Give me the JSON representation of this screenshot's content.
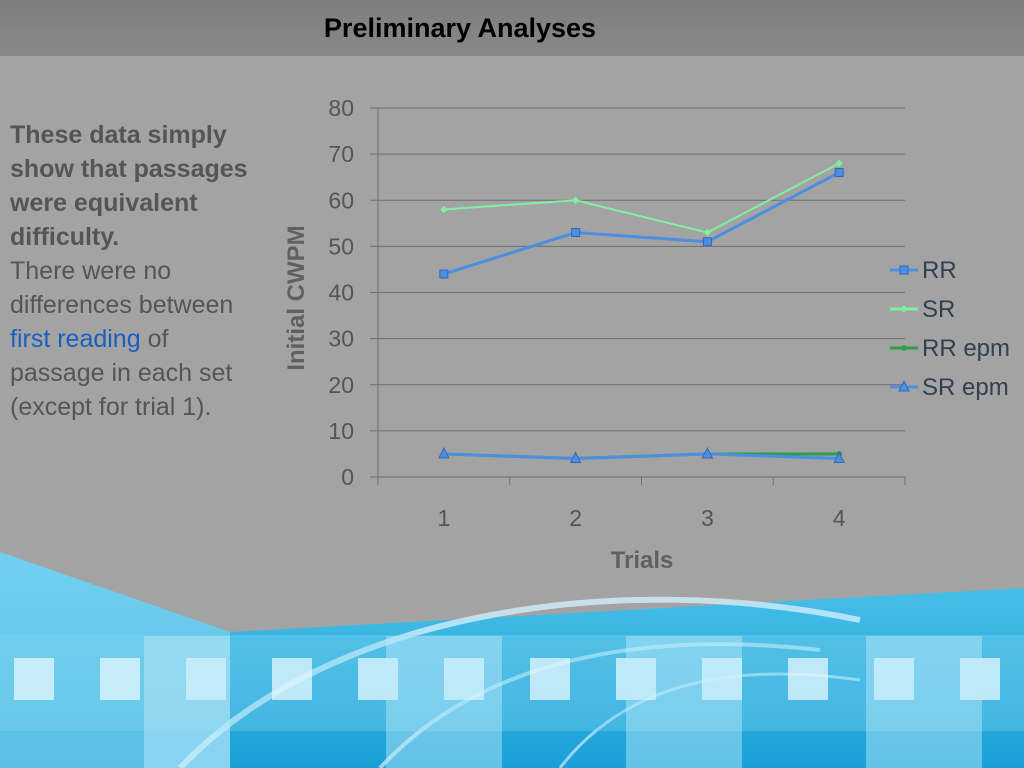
{
  "slide": {
    "title": "Preliminary Analyses",
    "text": {
      "bold_line": "These data simply show that passages were equivalent difficulty.",
      "body_part1": "There were no differences between ",
      "link": "first reading",
      "body_part2": " of passage in each set (except for trial 1)."
    }
  },
  "chart_data": {
    "type": "line",
    "title": "",
    "xlabel": "Trials",
    "ylabel": "Initial CWPM",
    "categories": [
      "1",
      "2",
      "3",
      "4"
    ],
    "ylim": [
      0,
      80
    ],
    "yticks": [
      "0",
      "10",
      "20",
      "30",
      "40",
      "50",
      "60",
      "70",
      "80"
    ],
    "grid": true,
    "legend": "right",
    "series": [
      {
        "name": "RR",
        "values": [
          44,
          53,
          51,
          66
        ],
        "color": "#4a8fe0",
        "marker": "square"
      },
      {
        "name": "SR",
        "values": [
          58,
          60,
          53,
          68
        ],
        "color": "#7ef0a0",
        "marker": "diamond"
      },
      {
        "name": "RR epm",
        "values": [
          5,
          4,
          5,
          5
        ],
        "color": "#2e9e4a",
        "marker": "circle"
      },
      {
        "name": "SR epm",
        "values": [
          5,
          4,
          5,
          4
        ],
        "color": "#4a8fe0",
        "marker": "triangle"
      }
    ]
  }
}
